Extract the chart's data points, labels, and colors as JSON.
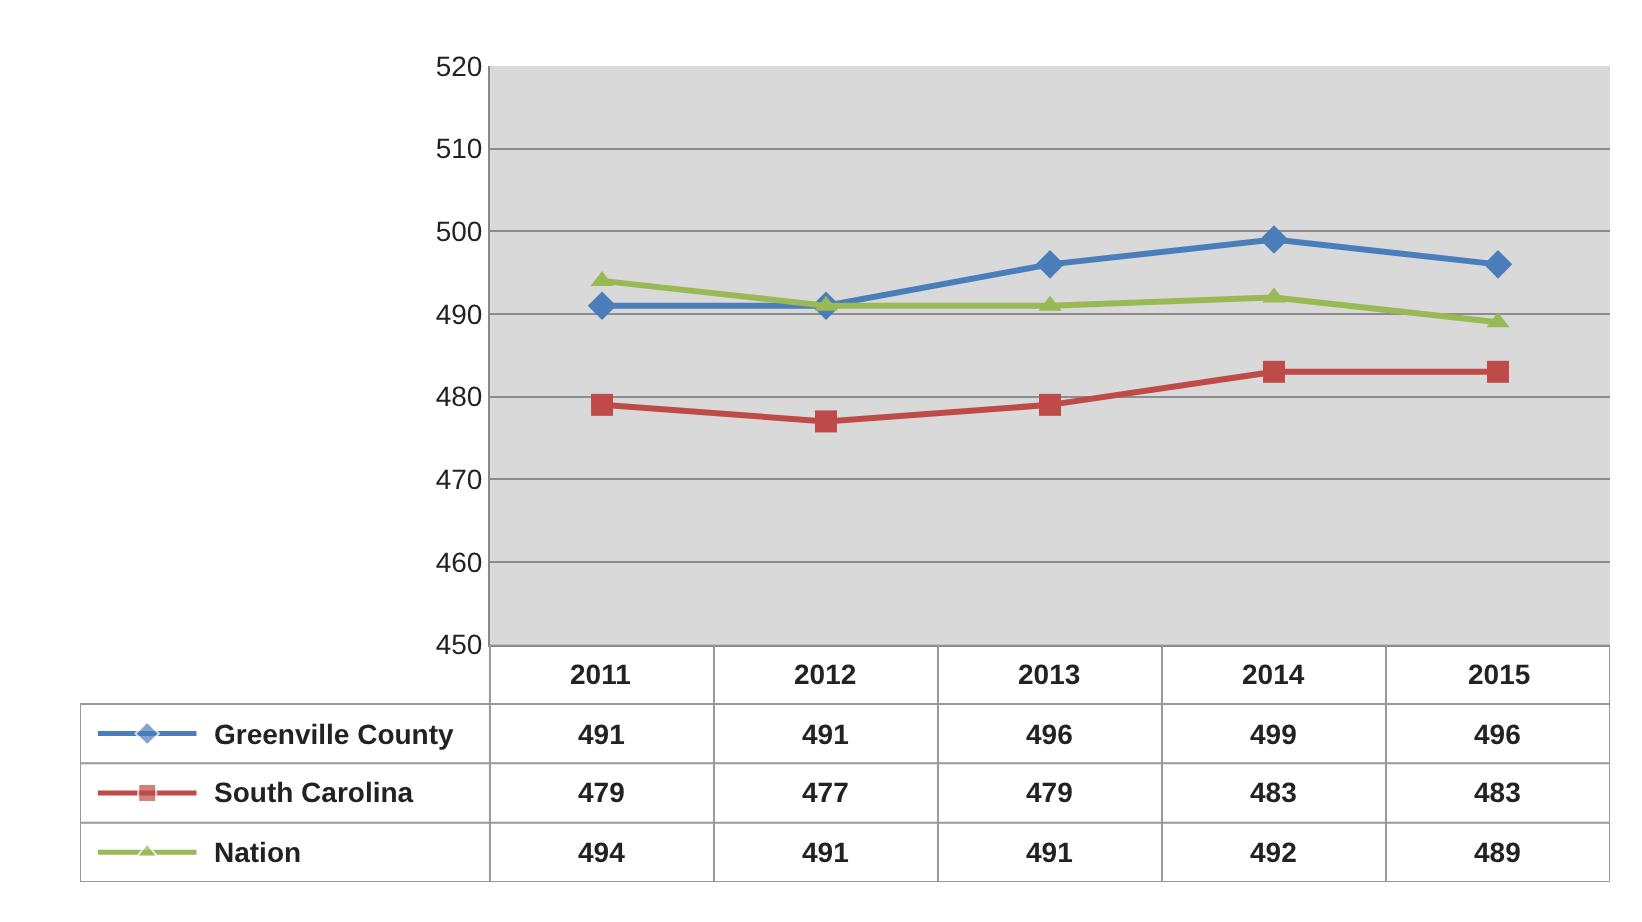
{
  "chart_data": {
    "type": "line",
    "categories": [
      "2011",
      "2012",
      "2013",
      "2014",
      "2015"
    ],
    "series": [
      {
        "name": "Greenville County",
        "color": "#4a7ebb",
        "marker": "diamond",
        "values": [
          491,
          491,
          496,
          499,
          496
        ]
      },
      {
        "name": "South Carolina",
        "color": "#be4b48",
        "marker": "square",
        "values": [
          479,
          477,
          479,
          483,
          483
        ]
      },
      {
        "name": "Nation",
        "color": "#98b954",
        "marker": "triangle",
        "values": [
          494,
          491,
          491,
          492,
          489
        ]
      }
    ],
    "ylim": [
      450,
      520
    ],
    "yticks": [
      450,
      460,
      470,
      480,
      490,
      500,
      510,
      520
    ],
    "grid": "y",
    "data_labels": true,
    "legend": "bottom left"
  }
}
